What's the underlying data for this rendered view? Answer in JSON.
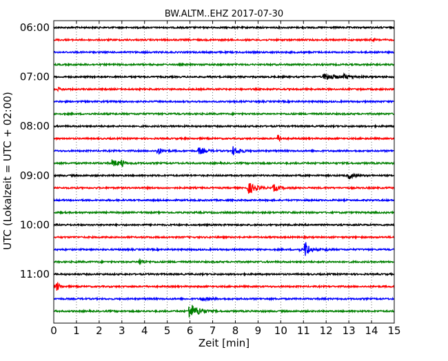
{
  "chart_data": {
    "type": "line",
    "title": "BW.ALTM..EHZ 2017-07-30",
    "xlabel": "Zeit  [min]",
    "ylabel": "UTC (Lokalzeit = UTC + 02:00)",
    "xlim": [
      0,
      15
    ],
    "x_ticks": [
      0,
      1,
      2,
      3,
      4,
      5,
      6,
      7,
      8,
      9,
      10,
      11,
      12,
      13,
      14,
      15
    ],
    "y_tick_labels": [
      "06:00",
      "07:00",
      "08:00",
      "09:00",
      "10:00",
      "11:00"
    ],
    "grid": "vertical dotted",
    "trace_colors": [
      "#000000",
      "#ff0000",
      "#0000ff",
      "#008000"
    ],
    "traces": [
      {
        "start": "06:00",
        "events": []
      },
      {
        "start": "06:15",
        "events": [
          {
            "t": 14.0,
            "amp": 1.5,
            "dur": 0.3
          }
        ]
      },
      {
        "start": "06:30",
        "events": []
      },
      {
        "start": "06:45",
        "events": []
      },
      {
        "start": "07:00",
        "events": [
          {
            "t": 11.9,
            "amp": 4.5,
            "dur": 1.2
          },
          {
            "t": 12.8,
            "amp": 2.5,
            "dur": 0.6
          }
        ]
      },
      {
        "start": "07:15",
        "events": [
          {
            "t": 0.2,
            "amp": 2.0,
            "dur": 0.3
          }
        ]
      },
      {
        "start": "07:30",
        "events": []
      },
      {
        "start": "07:45",
        "events": []
      },
      {
        "start": "08:00",
        "events": []
      },
      {
        "start": "08:15",
        "events": [
          {
            "t": 9.9,
            "amp": 7.0,
            "dur": 0.15
          }
        ]
      },
      {
        "start": "08:30",
        "events": [
          {
            "t": 4.6,
            "amp": 5.0,
            "dur": 0.4
          },
          {
            "t": 6.4,
            "amp": 5.0,
            "dur": 0.5
          },
          {
            "t": 7.9,
            "amp": 6.0,
            "dur": 0.35
          },
          {
            "t": 8.2,
            "amp": 2.5,
            "dur": 0.4
          }
        ]
      },
      {
        "start": "08:45",
        "events": [
          {
            "t": 2.6,
            "amp": 5.0,
            "dur": 0.6
          },
          {
            "t": 3.0,
            "amp": 6.0,
            "dur": 0.15
          }
        ]
      },
      {
        "start": "09:00",
        "events": [
          {
            "t": 13.0,
            "amp": 5.0,
            "dur": 0.4
          }
        ]
      },
      {
        "start": "09:15",
        "events": [
          {
            "t": 8.6,
            "amp": 8.0,
            "dur": 0.6
          },
          {
            "t": 9.7,
            "amp": 4.5,
            "dur": 0.5
          }
        ]
      },
      {
        "start": "09:30",
        "events": []
      },
      {
        "start": "09:45",
        "events": []
      },
      {
        "start": "10:00",
        "events": []
      },
      {
        "start": "10:15",
        "events": []
      },
      {
        "start": "10:30",
        "events": [
          {
            "t": 11.1,
            "amp": 12.0,
            "dur": 0.35
          },
          {
            "t": 12.0,
            "amp": 3.0,
            "dur": 0.2
          },
          {
            "t": 10.8,
            "amp": 2.0,
            "dur": 0.3
          }
        ]
      },
      {
        "start": "10:45",
        "events": [
          {
            "t": 3.8,
            "amp": 3.5,
            "dur": 0.4
          }
        ]
      },
      {
        "start": "11:00",
        "events": []
      },
      {
        "start": "11:15",
        "events": [
          {
            "t": 0.15,
            "amp": 7.0,
            "dur": 0.2
          }
        ]
      },
      {
        "start": "11:30",
        "events": [
          {
            "t": 6.5,
            "amp": 2.0,
            "dur": 0.8
          }
        ]
      },
      {
        "start": "11:45",
        "events": [
          {
            "t": 6.0,
            "amp": 13.0,
            "dur": 0.5
          },
          {
            "t": 6.4,
            "amp": 3.0,
            "dur": 0.6
          }
        ]
      }
    ]
  }
}
